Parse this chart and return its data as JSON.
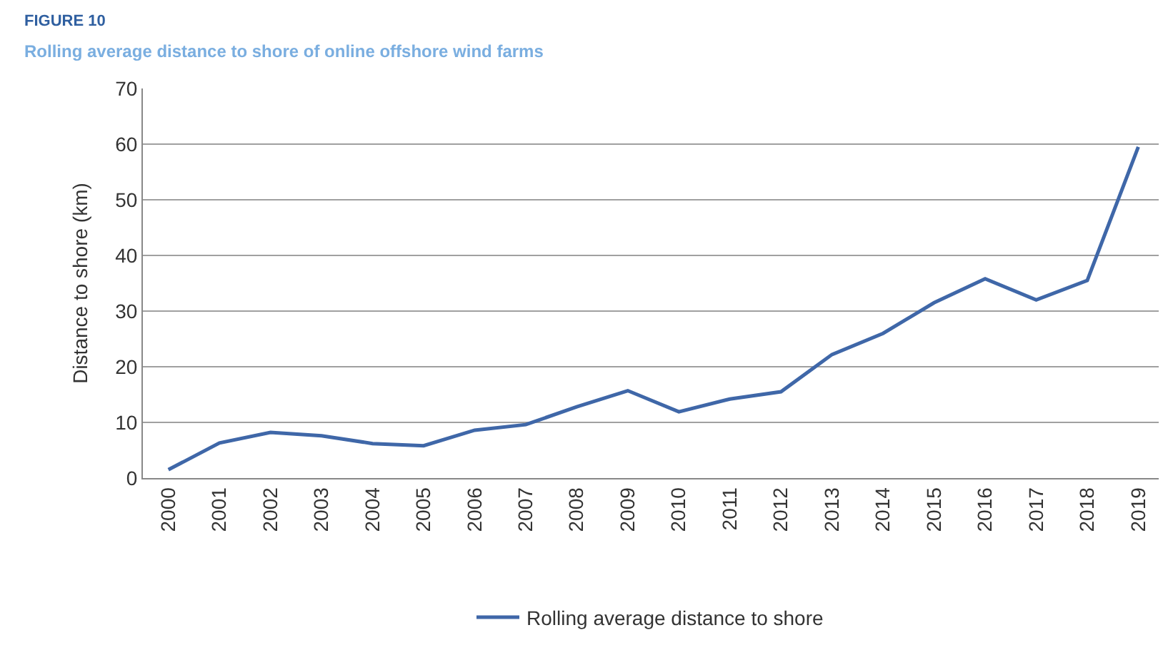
{
  "chart_data": {
    "type": "line",
    "title": "FIGURE 10",
    "subtitle": "Rolling average distance to shore of online offshore wind farms",
    "ylabel": "Distance to shore (km)",
    "categories": [
      "2000",
      "2001",
      "2002",
      "2003",
      "2004",
      "2005",
      "2006",
      "2007",
      "2008",
      "2009",
      "2010",
      "2011",
      "2012",
      "2013",
      "2014",
      "2015",
      "2016",
      "2017",
      "2018",
      "2019"
    ],
    "series": [
      {
        "name": "Rolling average distance to shore",
        "color": "#3f67a8",
        "values": [
          1.5,
          6.3,
          8.2,
          7.6,
          6.2,
          5.8,
          8.6,
          9.6,
          12.8,
          15.7,
          11.9,
          14.2,
          15.5,
          22.2,
          26,
          31.5,
          35.8,
          32,
          35.5,
          59.5
        ]
      }
    ],
    "ylim": [
      0,
      70
    ],
    "yticks": [
      0,
      10,
      20,
      30,
      40,
      50,
      60,
      70
    ],
    "grid": "y",
    "legend": "bottom",
    "marker": "none",
    "line_style": "solid"
  }
}
